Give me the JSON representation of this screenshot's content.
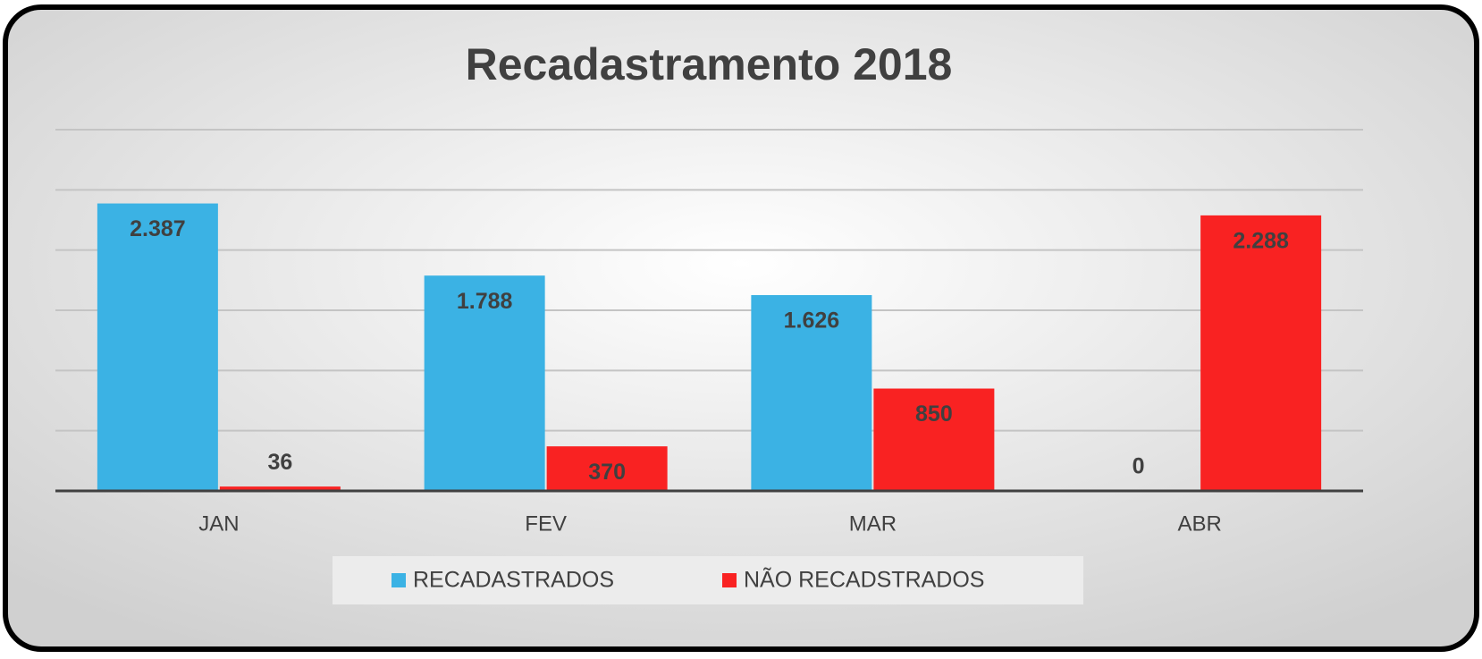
{
  "chart_data": {
    "type": "bar",
    "title": "Recadastramento 2018",
    "categories": [
      "JAN",
      "FEV",
      "MAR",
      "ABR"
    ],
    "series": [
      {
        "name": "RECADASTRADOS",
        "color": "#3bb2e4",
        "values": [
          2387,
          1788,
          1626,
          0
        ],
        "value_labels": [
          "2.387",
          "1.788",
          "1.626",
          "0"
        ]
      },
      {
        "name": "NÃO RECADSTRADOS",
        "color": "#f92222",
        "values": [
          36,
          370,
          850,
          2288
        ],
        "value_labels": [
          "36",
          "370",
          "850",
          "2.288"
        ]
      }
    ],
    "ylim": [
      0,
      3000
    ],
    "yticks": [
      0,
      500,
      1000,
      1500,
      2000,
      2500,
      3000
    ],
    "grid": true,
    "legend": "bottom"
  }
}
